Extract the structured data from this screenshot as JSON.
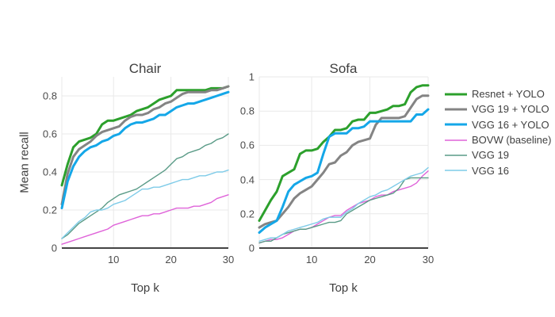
{
  "figure": {
    "background": "#ffffff",
    "text_color": "#3f3f3f",
    "grid_color": "#e9e9e9",
    "zeroline_color": "#444444",
    "axis_title_x": "Top k",
    "axis_title_y": "Mean recall"
  },
  "legend": {
    "position": "right",
    "items": [
      {
        "label": "Resnet + YOLO",
        "color": "#2ca02c",
        "width": 3
      },
      {
        "label": "VGG 19 + YOLO",
        "color": "#848484",
        "width": 3
      },
      {
        "label": "VGG 16 + YOLO",
        "color": "#14a7e8",
        "width": 3
      },
      {
        "label": "BOVW (baseline)",
        "color": "#df63d9",
        "width": 1.4
      },
      {
        "label": "VGG 19",
        "color": "#5a9b87",
        "width": 1.4
      },
      {
        "label": "VGG 16",
        "color": "#7ecbe8",
        "width": 1.4
      }
    ]
  },
  "chart_data": [
    {
      "type": "line",
      "title": "Chair",
      "xlabel": "Top k",
      "ylabel": "Mean recall",
      "x": [
        1,
        2,
        3,
        4,
        5,
        6,
        7,
        8,
        9,
        10,
        11,
        12,
        13,
        14,
        15,
        16,
        17,
        18,
        19,
        20,
        21,
        22,
        23,
        24,
        25,
        26,
        27,
        28,
        29,
        30
      ],
      "xticks": [
        10,
        20,
        30
      ],
      "yticks": [
        0,
        0.2,
        0.4,
        0.6,
        0.8
      ],
      "ytick_labels": [
        "0",
        "0.2",
        "0.4",
        "0.6",
        "0.8"
      ],
      "xlim": [
        1,
        30
      ],
      "ylim": [
        0,
        0.9
      ],
      "grid": true,
      "series": [
        {
          "name": "Resnet + YOLO",
          "color": "#2ca02c",
          "width": 3,
          "values": [
            0.33,
            0.44,
            0.53,
            0.56,
            0.57,
            0.58,
            0.6,
            0.65,
            0.67,
            0.67,
            0.68,
            0.69,
            0.7,
            0.72,
            0.73,
            0.74,
            0.76,
            0.78,
            0.79,
            0.8,
            0.83,
            0.83,
            0.83,
            0.83,
            0.83,
            0.83,
            0.84,
            0.84,
            0.84,
            0.85
          ]
        },
        {
          "name": "VGG 19 + YOLO",
          "color": "#848484",
          "width": 3,
          "values": [
            0.23,
            0.39,
            0.48,
            0.52,
            0.54,
            0.56,
            0.59,
            0.61,
            0.62,
            0.63,
            0.64,
            0.67,
            0.69,
            0.7,
            0.7,
            0.71,
            0.73,
            0.74,
            0.76,
            0.77,
            0.79,
            0.81,
            0.82,
            0.82,
            0.82,
            0.82,
            0.83,
            0.83,
            0.84,
            0.85
          ]
        },
        {
          "name": "VGG 16 + YOLO",
          "color": "#14a7e8",
          "width": 3,
          "values": [
            0.21,
            0.35,
            0.43,
            0.48,
            0.51,
            0.53,
            0.54,
            0.56,
            0.57,
            0.59,
            0.6,
            0.63,
            0.65,
            0.66,
            0.66,
            0.67,
            0.68,
            0.7,
            0.7,
            0.72,
            0.74,
            0.75,
            0.76,
            0.76,
            0.77,
            0.78,
            0.79,
            0.8,
            0.81,
            0.82
          ]
        },
        {
          "name": "BOVW (baseline)",
          "color": "#df63d9",
          "width": 1.4,
          "values": [
            0.02,
            0.03,
            0.04,
            0.05,
            0.06,
            0.07,
            0.08,
            0.09,
            0.1,
            0.12,
            0.13,
            0.14,
            0.15,
            0.16,
            0.17,
            0.17,
            0.18,
            0.18,
            0.19,
            0.2,
            0.21,
            0.21,
            0.21,
            0.22,
            0.22,
            0.23,
            0.24,
            0.26,
            0.27,
            0.28
          ]
        },
        {
          "name": "VGG 19",
          "color": "#5a9b87",
          "width": 1.4,
          "values": [
            0.05,
            0.07,
            0.1,
            0.13,
            0.15,
            0.17,
            0.19,
            0.21,
            0.24,
            0.26,
            0.28,
            0.29,
            0.3,
            0.31,
            0.33,
            0.35,
            0.37,
            0.39,
            0.41,
            0.44,
            0.47,
            0.48,
            0.5,
            0.51,
            0.52,
            0.54,
            0.55,
            0.57,
            0.58,
            0.6
          ]
        },
        {
          "name": "VGG 16",
          "color": "#7ecbe8",
          "width": 1.4,
          "values": [
            0.05,
            0.08,
            0.11,
            0.14,
            0.16,
            0.19,
            0.2,
            0.2,
            0.21,
            0.23,
            0.24,
            0.25,
            0.27,
            0.29,
            0.31,
            0.31,
            0.32,
            0.32,
            0.33,
            0.34,
            0.35,
            0.36,
            0.36,
            0.37,
            0.38,
            0.38,
            0.39,
            0.4,
            0.4,
            0.41
          ]
        }
      ]
    },
    {
      "type": "line",
      "title": "Sofa",
      "xlabel": "Top k",
      "ylabel": "",
      "x": [
        1,
        2,
        3,
        4,
        5,
        6,
        7,
        8,
        9,
        10,
        11,
        12,
        13,
        14,
        15,
        16,
        17,
        18,
        19,
        20,
        21,
        22,
        23,
        24,
        25,
        26,
        27,
        28,
        29,
        30
      ],
      "xticks": [
        10,
        20,
        30
      ],
      "yticks": [
        0,
        0.2,
        0.4,
        0.6,
        0.8,
        1
      ],
      "ytick_labels": [
        "0",
        "0.2",
        "0.4",
        "0.6",
        "0.8",
        "1"
      ],
      "xlim": [
        1,
        30
      ],
      "ylim": [
        0,
        1
      ],
      "grid": true,
      "series": [
        {
          "name": "Resnet + YOLO",
          "color": "#2ca02c",
          "width": 3,
          "values": [
            0.16,
            0.22,
            0.28,
            0.33,
            0.42,
            0.44,
            0.46,
            0.55,
            0.57,
            0.57,
            0.58,
            0.62,
            0.65,
            0.69,
            0.69,
            0.7,
            0.74,
            0.75,
            0.75,
            0.79,
            0.79,
            0.8,
            0.81,
            0.83,
            0.83,
            0.84,
            0.91,
            0.94,
            0.95,
            0.95
          ]
        },
        {
          "name": "VGG 19 + YOLO",
          "color": "#848484",
          "width": 3,
          "values": [
            0.12,
            0.14,
            0.15,
            0.16,
            0.2,
            0.24,
            0.29,
            0.32,
            0.34,
            0.36,
            0.4,
            0.44,
            0.49,
            0.5,
            0.54,
            0.56,
            0.6,
            0.62,
            0.63,
            0.64,
            0.72,
            0.76,
            0.76,
            0.76,
            0.76,
            0.77,
            0.82,
            0.87,
            0.89,
            0.89
          ]
        },
        {
          "name": "VGG 16 + YOLO",
          "color": "#14a7e8",
          "width": 3,
          "values": [
            0.09,
            0.12,
            0.14,
            0.16,
            0.24,
            0.33,
            0.37,
            0.39,
            0.41,
            0.42,
            0.44,
            0.55,
            0.65,
            0.67,
            0.67,
            0.67,
            0.7,
            0.7,
            0.71,
            0.74,
            0.74,
            0.74,
            0.74,
            0.74,
            0.74,
            0.74,
            0.74,
            0.78,
            0.78,
            0.81
          ]
        },
        {
          "name": "BOVW (baseline)",
          "color": "#df63d9",
          "width": 1.4,
          "values": [
            0.03,
            0.04,
            0.05,
            0.05,
            0.06,
            0.08,
            0.1,
            0.11,
            0.11,
            0.12,
            0.14,
            0.16,
            0.18,
            0.19,
            0.19,
            0.22,
            0.24,
            0.26,
            0.27,
            0.28,
            0.3,
            0.31,
            0.31,
            0.33,
            0.34,
            0.35,
            0.36,
            0.38,
            0.42,
            0.45
          ]
        },
        {
          "name": "VGG 19",
          "color": "#5a9b87",
          "width": 1.4,
          "values": [
            0.03,
            0.04,
            0.04,
            0.06,
            0.08,
            0.09,
            0.1,
            0.11,
            0.11,
            0.12,
            0.13,
            0.14,
            0.15,
            0.15,
            0.16,
            0.2,
            0.22,
            0.24,
            0.26,
            0.28,
            0.29,
            0.3,
            0.31,
            0.32,
            0.35,
            0.4,
            0.41,
            0.41,
            0.41,
            0.41
          ]
        },
        {
          "name": "VGG 16",
          "color": "#7ecbe8",
          "width": 1.4,
          "values": [
            0.04,
            0.05,
            0.06,
            0.06,
            0.08,
            0.1,
            0.11,
            0.12,
            0.13,
            0.14,
            0.15,
            0.17,
            0.18,
            0.18,
            0.18,
            0.21,
            0.23,
            0.26,
            0.28,
            0.3,
            0.31,
            0.33,
            0.34,
            0.36,
            0.38,
            0.4,
            0.42,
            0.43,
            0.44,
            0.47
          ]
        }
      ]
    }
  ]
}
